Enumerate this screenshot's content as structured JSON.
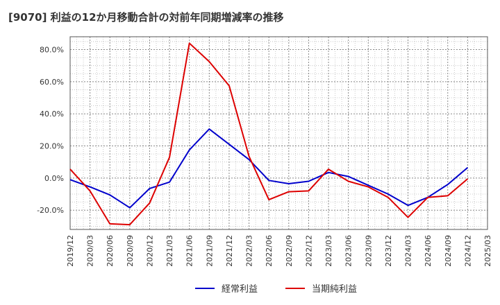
{
  "chart_data": {
    "type": "line",
    "title": "[9070]  利益の12か月移動合計の対前年同期増減率の推移",
    "xlabel": "",
    "ylabel": "",
    "ylim": [
      -32,
      88
    ],
    "yticks": [
      -20,
      0,
      20,
      40,
      60,
      80
    ],
    "ytick_labels": [
      "-20.0%",
      "0.0%",
      "20.0%",
      "40.0%",
      "60.0%",
      "80.0%"
    ],
    "grid": true,
    "legend_position": "bottom-center",
    "categories": [
      "2019/12",
      "2020/03",
      "2020/06",
      "2020/09",
      "2020/12",
      "2021/03",
      "2021/06",
      "2021/09",
      "2021/12",
      "2022/03",
      "2022/06",
      "2022/09",
      "2022/12",
      "2023/03",
      "2023/06",
      "2023/09",
      "2023/12",
      "2024/03",
      "2024/06",
      "2024/09",
      "2024/12",
      "2025/03"
    ],
    "series": [
      {
        "name": "経常利益",
        "color": "#0000cc",
        "values": [
          -1.0,
          -5.5,
          -10.5,
          -18.5,
          -6.5,
          -2.5,
          17.5,
          30.5,
          21.0,
          11.5,
          -1.5,
          -3.5,
          -2.0,
          3.5,
          1.0,
          -4.5,
          -10.0,
          -17.0,
          -12.0,
          -4.0,
          6.5,
          null
        ]
      },
      {
        "name": "当期純利益",
        "color": "#dd0000",
        "values": [
          5.5,
          -8.0,
          -28.5,
          -29.0,
          -15.5,
          13.0,
          84.0,
          72.5,
          57.5,
          13.5,
          -13.5,
          -8.5,
          -8.0,
          5.5,
          -2.0,
          -5.5,
          -12.0,
          -24.5,
          -12.0,
          -11.0,
          -0.5,
          null
        ]
      }
    ]
  }
}
